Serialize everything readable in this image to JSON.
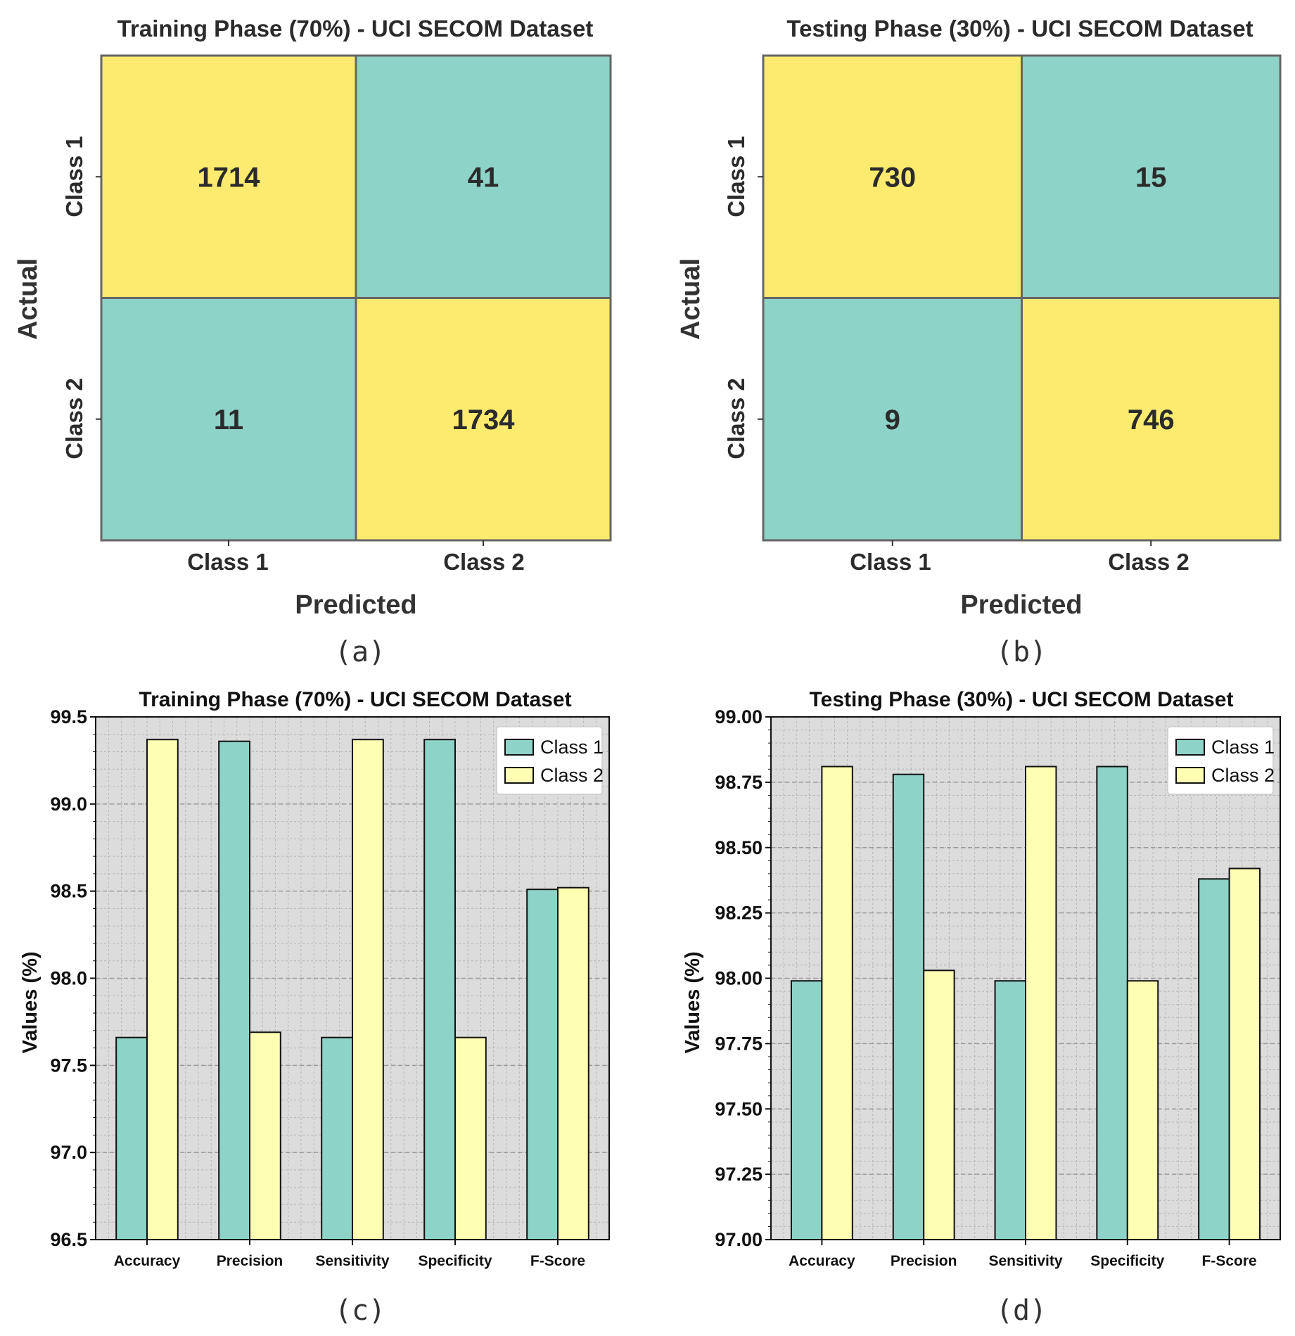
{
  "colors": {
    "yellow": "#FDEB6F",
    "teal": "#8ED3C7",
    "bar_teal": "#8ED3C7",
    "bar_yellow": "#FFFFB3",
    "plot_bg": "#DCDCDC",
    "grid": "#A8A8A8",
    "cell_border": "#666666"
  },
  "captions": {
    "a": "(a)",
    "b": "(b)",
    "c": "(c)",
    "d": "(d)"
  },
  "chart_data": [
    {
      "type": "heatmap",
      "id": "a",
      "title": "Training Phase (70%) - UCI SECOM Dataset",
      "xlabel": "Predicted",
      "ylabel": "Actual",
      "x_categories": [
        "Class 1",
        "Class 2"
      ],
      "y_categories": [
        "Class 1",
        "Class 2"
      ],
      "matrix": [
        [
          1714,
          41
        ],
        [
          11,
          1734
        ]
      ]
    },
    {
      "type": "heatmap",
      "id": "b",
      "title": "Testing Phase (30%) - UCI SECOM Dataset",
      "xlabel": "Predicted",
      "ylabel": "Actual",
      "x_categories": [
        "Class 1",
        "Class 2"
      ],
      "y_categories": [
        "Class 1",
        "Class 2"
      ],
      "matrix": [
        [
          730,
          15
        ],
        [
          9,
          746
        ]
      ]
    },
    {
      "type": "bar",
      "id": "c",
      "title": "Training Phase (70%) - UCI SECOM Dataset",
      "xlabel": "",
      "ylabel": "Values (%)",
      "categories": [
        "Accuracy",
        "Precision",
        "Sensitivity",
        "Specificity",
        "F-Score"
      ],
      "series": [
        {
          "name": "Class 1",
          "values": [
            97.66,
            99.36,
            97.66,
            99.37,
            98.51
          ]
        },
        {
          "name": "Class 2",
          "values": [
            99.37,
            97.69,
            99.37,
            97.66,
            98.52
          ]
        }
      ],
      "ylim": [
        96.5,
        99.5
      ],
      "yticks": [
        "96.5",
        "97.0",
        "97.5",
        "98.0",
        "98.5",
        "99.0",
        "99.5"
      ],
      "grid": true,
      "legend": "top-right"
    },
    {
      "type": "bar",
      "id": "d",
      "title": "Testing Phase (30%) - UCI SECOM Dataset",
      "xlabel": "",
      "ylabel": "Values (%)",
      "categories": [
        "Accuracy",
        "Precision",
        "Sensitivity",
        "Specificity",
        "F-Score"
      ],
      "series": [
        {
          "name": "Class 1",
          "values": [
            97.99,
            98.78,
            97.99,
            98.81,
            98.38
          ]
        },
        {
          "name": "Class 2",
          "values": [
            98.81,
            98.03,
            98.81,
            97.99,
            98.42
          ]
        }
      ],
      "ylim": [
        97.0,
        99.0
      ],
      "yticks": [
        "97.00",
        "97.25",
        "97.50",
        "97.75",
        "98.00",
        "98.25",
        "98.50",
        "98.75",
        "99.00"
      ],
      "grid": true,
      "legend": "top-right"
    }
  ]
}
